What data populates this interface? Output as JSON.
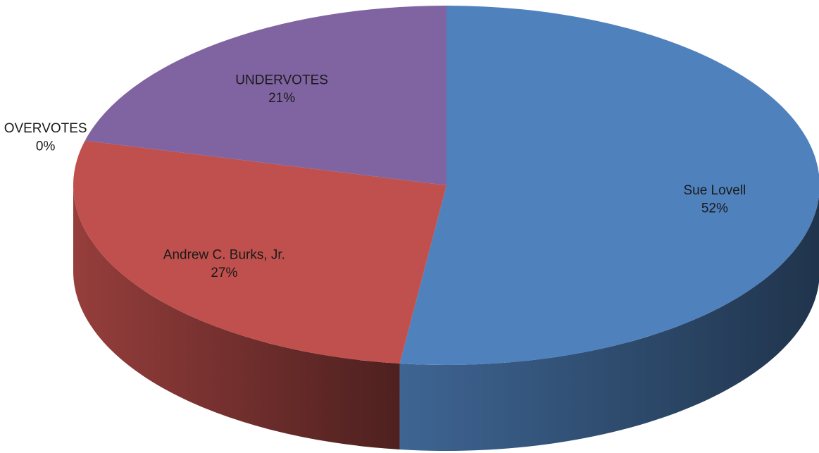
{
  "chart_data": {
    "type": "pie",
    "style": "3d",
    "legend": "none",
    "slices": [
      {
        "label": "Sue Lovell",
        "value": 52,
        "display": "52%",
        "color": "#4f81bd"
      },
      {
        "label": "Andrew C. Burks, Jr.",
        "value": 27,
        "display": "27%",
        "color": "#c0504d"
      },
      {
        "label": "OVERVOTES",
        "value": 0,
        "display": "0%",
        "color": "#9bbb59"
      },
      {
        "label": "UNDERVOTES",
        "value": 21,
        "display": "21%",
        "color": "#8064a2"
      }
    ]
  }
}
